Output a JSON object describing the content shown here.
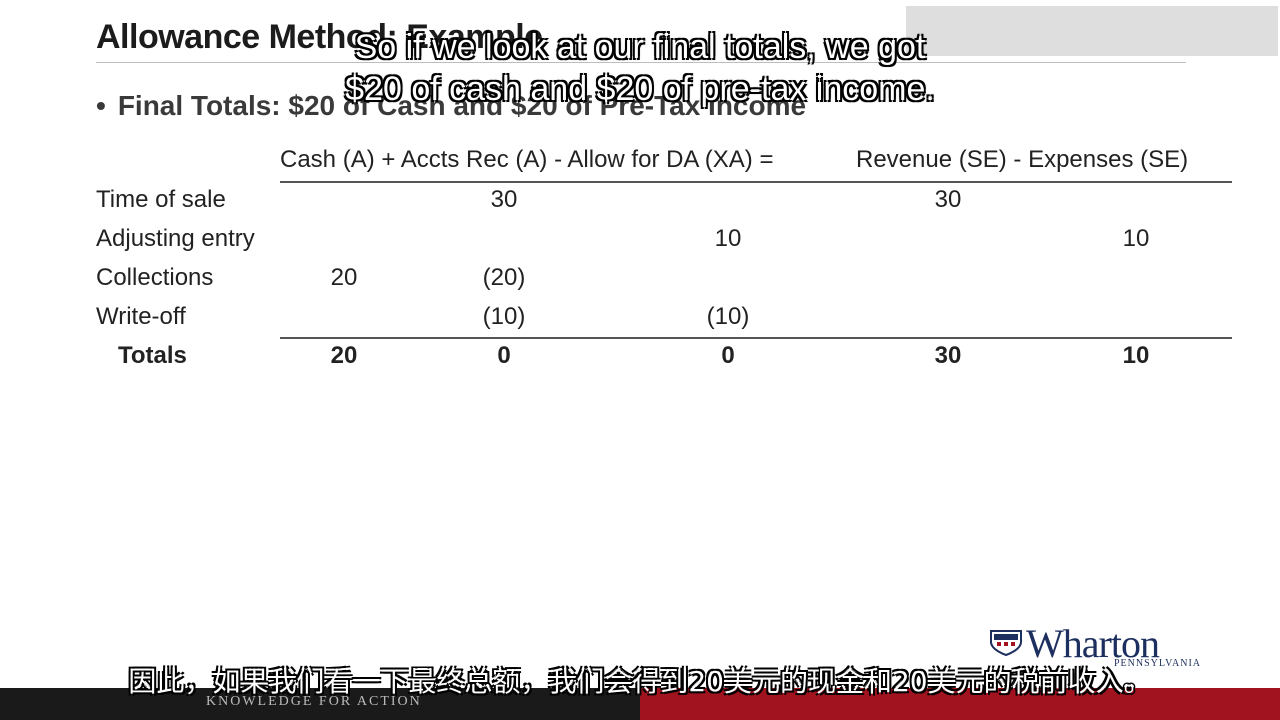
{
  "slide": {
    "title": "Allowance Method: Example",
    "bullet": "Final Totals: $20 of Cash and $20 of Pre-Tax Income",
    "bullet_marker": "•"
  },
  "table": {
    "header_left": "Cash (A) + Accts Rec (A) - Allow for DA (XA) =",
    "header_right": "Revenue (SE) - Expenses (SE)",
    "rows": [
      {
        "label": "Time of sale",
        "cash": "",
        "ar": "30",
        "allow": "",
        "rev": "30",
        "exp": ""
      },
      {
        "label": "Adjusting entry",
        "cash": "",
        "ar": "",
        "allow": "10",
        "rev": "",
        "exp": "10"
      },
      {
        "label": "Collections",
        "cash": "20",
        "ar": "(20)",
        "allow": "",
        "rev": "",
        "exp": ""
      },
      {
        "label": "Write-off",
        "cash": "",
        "ar": "(10)",
        "allow": "(10)",
        "rev": "",
        "exp": ""
      }
    ],
    "totals": {
      "label": "Totals",
      "cash": "20",
      "ar": "0",
      "allow": "0",
      "rev": "30",
      "exp": "10"
    }
  },
  "captions": {
    "english_line1": "So if we look at our final totals, we got",
    "english_line2": "$20 of cash and $20 of pre-tax income.",
    "chinese": "因此，如果我们看一下最终总额，我们会得到20美元的现金和20美元的税前收入。"
  },
  "branding": {
    "logo": "Wharton",
    "logo_sub": "PENNSYLVANIA",
    "footer_tagline": "KNOWLEDGE FOR ACTION",
    "logo_color": "#1d2f5e",
    "footer_red": "#a1141f"
  }
}
